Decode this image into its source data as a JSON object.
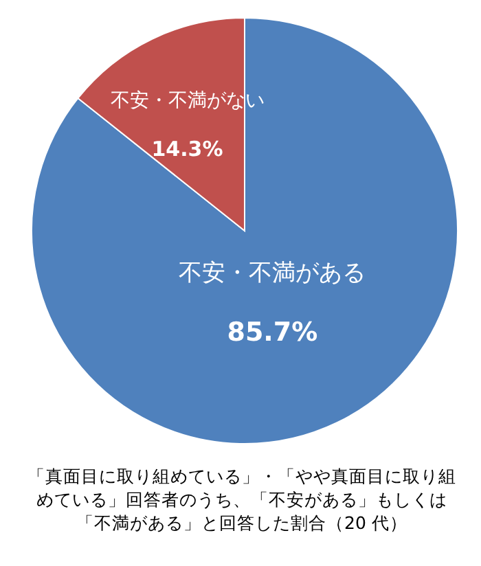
{
  "chart_data": {
    "type": "pie",
    "categories": [
      "不安・不満がある",
      "不安・不満がない"
    ],
    "values": [
      85.7,
      14.3
    ],
    "value_labels": [
      "85.7%",
      "14.3%"
    ],
    "colors": [
      "#4f81bd",
      "#c0504d"
    ],
    "legend": false,
    "annotations": [
      "「真面目に取り組めている」・「やや真面目に取り組めている」回答者のうち、「不安がある」もしくは「不満がある」と回答した割合（20 代）"
    ]
  }
}
